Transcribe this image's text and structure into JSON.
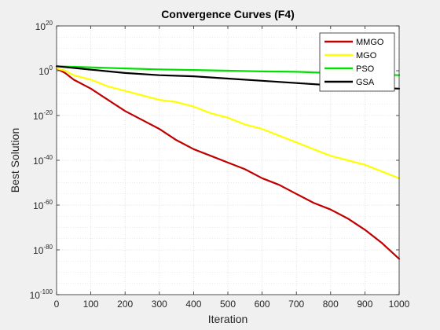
{
  "chart_data": {
    "type": "line",
    "title": "Convergence Curves (F4)",
    "xlabel": "Iteration",
    "ylabel": "Best Solution",
    "yscale": "log",
    "xlim": [
      0,
      1000
    ],
    "ylim_exponent": [
      -100,
      20
    ],
    "x_ticks": [
      0,
      100,
      200,
      300,
      400,
      500,
      600,
      700,
      800,
      900,
      1000
    ],
    "y_tick_exponents": [
      -100,
      -80,
      -60,
      -40,
      -20,
      0,
      20
    ],
    "grid": true,
    "minor_grid": true,
    "legend_location": "top-right",
    "series": [
      {
        "name": "MMGO",
        "color": "#c00000",
        "x": [
          0,
          25,
          50,
          100,
          150,
          200,
          250,
          300,
          350,
          400,
          450,
          500,
          550,
          600,
          650,
          700,
          750,
          800,
          850,
          900,
          950,
          1000
        ],
        "log10_y": [
          1,
          -1,
          -4,
          -8,
          -13,
          -18,
          -22,
          -26,
          -31,
          -35,
          -38,
          -41,
          -44,
          -48,
          -51,
          -55,
          -59,
          -62,
          -66,
          -71,
          -77,
          -84
        ]
      },
      {
        "name": "MGO",
        "color": "#ffff00",
        "x": [
          0,
          25,
          50,
          100,
          150,
          200,
          250,
          300,
          350,
          400,
          450,
          500,
          550,
          600,
          650,
          700,
          750,
          800,
          850,
          900,
          950,
          1000
        ],
        "log10_y": [
          1,
          0,
          -2,
          -4,
          -7,
          -9,
          -11,
          -13,
          -14,
          -16,
          -19,
          -21,
          -24,
          -26,
          -29,
          -32,
          -35,
          -38,
          -40,
          -42,
          -45,
          -48
        ]
      },
      {
        "name": "PSO",
        "color": "#00e000",
        "x": [
          0,
          100,
          200,
          300,
          400,
          500,
          600,
          700,
          800,
          900,
          1000
        ],
        "log10_y": [
          2,
          1.5,
          1,
          0.6,
          0.3,
          0,
          -0.3,
          -0.5,
          -1,
          -1.5,
          -2
        ]
      },
      {
        "name": "GSA",
        "color": "#000000",
        "x": [
          0,
          100,
          200,
          300,
          400,
          500,
          600,
          700,
          800,
          900,
          1000
        ],
        "log10_y": [
          2,
          0.5,
          -1,
          -2,
          -2.5,
          -3.5,
          -4.5,
          -5.5,
          -6.5,
          -7.5,
          -8
        ]
      }
    ]
  }
}
